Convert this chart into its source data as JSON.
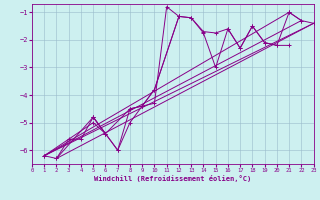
{
  "xlabel": "Windchill (Refroidissement éolien,°C)",
  "xlim": [
    0,
    23
  ],
  "ylim": [
    -6.5,
    -0.7
  ],
  "yticks": [
    -6,
    -5,
    -4,
    -3,
    -2,
    -1
  ],
  "xticks": [
    0,
    1,
    2,
    3,
    4,
    5,
    6,
    7,
    8,
    9,
    10,
    11,
    12,
    13,
    14,
    15,
    16,
    17,
    18,
    19,
    20,
    21,
    22,
    23
  ],
  "background_color": "#cdf0f0",
  "line_color": "#880088",
  "grid_color": "#99bbcc",
  "series": [
    {
      "x": [
        1,
        2,
        5,
        7,
        8,
        9,
        10,
        11,
        12
      ],
      "y": [
        -6.2,
        -6.3,
        -4.8,
        -6.0,
        -5.0,
        -4.4,
        -4.3,
        -0.8,
        -1.15
      ]
    },
    {
      "x": [
        1,
        5,
        6,
        7,
        8,
        9,
        10,
        12,
        13,
        14,
        15,
        16,
        17,
        18,
        19,
        20,
        21,
        22
      ],
      "y": [
        -6.2,
        -5.0,
        -5.4,
        -6.0,
        -4.5,
        -4.4,
        -3.8,
        -1.15,
        -1.2,
        -1.7,
        -1.75,
        -1.6,
        -2.3,
        -1.5,
        -2.1,
        -2.2,
        -1.0,
        -1.3
      ]
    },
    {
      "x": [
        2,
        3,
        4,
        5,
        6
      ],
      "y": [
        -6.3,
        -5.6,
        -5.6,
        -4.8,
        -5.4
      ]
    },
    {
      "x": [
        5,
        6,
        8,
        9,
        10,
        12,
        13,
        14,
        15,
        16,
        17,
        18,
        19,
        20,
        21
      ],
      "y": [
        -4.8,
        -5.4,
        -4.5,
        -4.4,
        -3.8,
        -1.15,
        -1.2,
        -1.75,
        -3.0,
        -1.6,
        -2.3,
        -1.5,
        -2.1,
        -2.2,
        -2.2
      ]
    },
    {
      "x": [
        21,
        22,
        23
      ],
      "y": [
        -1.0,
        -1.3,
        -1.4
      ]
    }
  ],
  "trend_lines": [
    {
      "x0": 1,
      "y0": -6.2,
      "x1": 23,
      "y1": -1.4
    },
    {
      "x0": 1,
      "y0": -6.2,
      "x1": 22,
      "y1": -1.3
    },
    {
      "x0": 2,
      "y0": -6.3,
      "x1": 23,
      "y1": -1.4
    },
    {
      "x0": 1,
      "y0": -6.2,
      "x1": 21,
      "y1": -1.0
    }
  ]
}
